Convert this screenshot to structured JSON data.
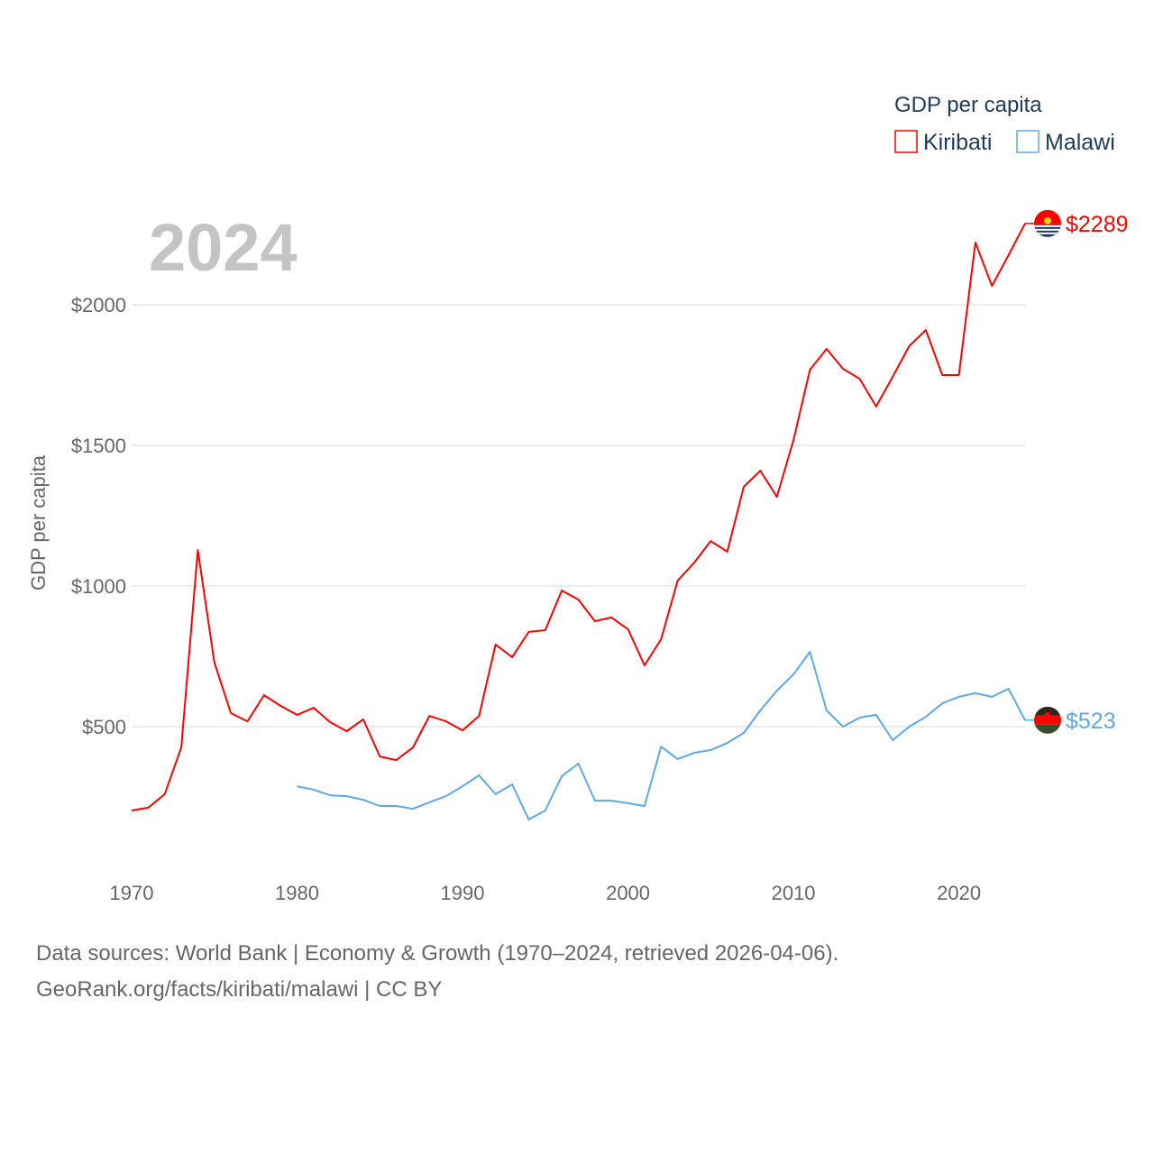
{
  "chart_data": {
    "type": "line",
    "title": "GDP per capita",
    "year_label": "2024",
    "ylabel": "GDP per capita",
    "xlabel": "",
    "ylim": [
      0,
      2350
    ],
    "xlim": [
      1970,
      2024
    ],
    "y_ticks": [
      {
        "v": 500,
        "label": "$500"
      },
      {
        "v": 1000,
        "label": "$1000"
      },
      {
        "v": 1500,
        "label": "$1500"
      },
      {
        "v": 2000,
        "label": "$2000"
      }
    ],
    "x_ticks": [
      {
        "v": 1970,
        "label": "1970"
      },
      {
        "v": 1980,
        "label": "1980"
      },
      {
        "v": 1990,
        "label": "1990"
      },
      {
        "v": 2000,
        "label": "2000"
      },
      {
        "v": 2010,
        "label": "2010"
      },
      {
        "v": 2020,
        "label": "2020"
      }
    ],
    "grid": true,
    "legend_position": "top-right",
    "series": [
      {
        "name": "Kiribati",
        "color": "#ff0000",
        "start": 1970,
        "end_label": "$2289",
        "flag": "kiribati-flag",
        "values": [
          202,
          212,
          260,
          426,
          1128,
          728,
          548,
          519,
          612,
          574,
          542,
          567,
          516,
          484,
          526,
          394,
          381,
          426,
          538,
          519,
          487,
          538,
          792,
          747,
          837,
          843,
          984,
          952,
          875,
          888,
          846,
          718,
          811,
          1019,
          1083,
          1160,
          1122,
          1353,
          1410,
          1317,
          1519,
          1769,
          1843,
          1772,
          1737,
          1638,
          1744,
          1853,
          1910,
          1750,
          1750,
          2221,
          2067,
          2176,
          2289
        ]
      },
      {
        "name": "Malawi",
        "color": "#5fa8e8",
        "start": 1980,
        "end_label": "$523",
        "flag": "malawi-flag",
        "values": [
          288,
          276,
          256,
          253,
          240,
          218,
          218,
          208,
          231,
          253,
          288,
          327,
          260,
          295,
          170,
          202,
          324,
          369,
          237,
          237,
          228,
          218,
          429,
          385,
          407,
          417,
          442,
          478,
          558,
          628,
          686,
          766,
          558,
          500,
          532,
          542,
          452,
          500,
          535,
          583,
          606,
          619,
          606,
          635,
          523
        ]
      }
    ]
  },
  "footer": {
    "line1": "Data sources: World Bank | Economy & Growth (1970–2024, retrieved 2026-04-06).",
    "line2": "GeoRank.org/facts/kiribati/malawi | CC BY"
  }
}
